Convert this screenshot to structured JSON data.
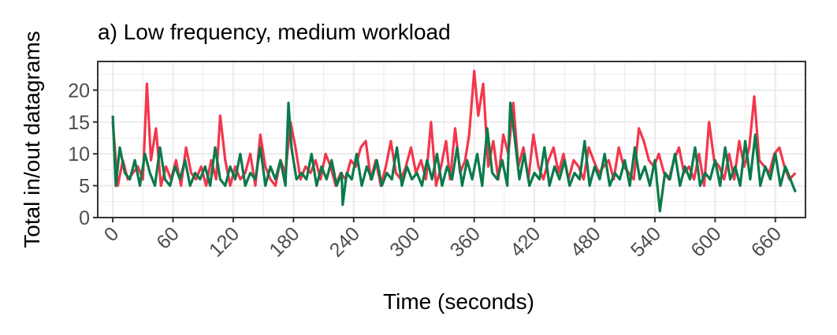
{
  "chart_data": {
    "type": "line",
    "title": "a) Low frequency, medium workload",
    "xlabel": "Time (seconds)",
    "ylabel": "Total in/out datagrams",
    "xlim": [
      -15,
      690
    ],
    "ylim": [
      0,
      24.5
    ],
    "x_ticks": [
      0,
      60,
      120,
      180,
      240,
      300,
      360,
      420,
      480,
      540,
      600,
      660
    ],
    "x_tick_labels": [
      "0",
      "60",
      "120",
      "180",
      "240",
      "300",
      "360",
      "420",
      "480",
      "540",
      "600",
      "660"
    ],
    "y_ticks": [
      0,
      5,
      10,
      15,
      20
    ],
    "y_tick_labels": [
      "0",
      "5",
      "10",
      "15",
      "20"
    ],
    "grid": true,
    "legend": "none",
    "colors": {
      "red_series": "#f4364c",
      "green_series": "#0b7a4b",
      "panel_border": "#333333",
      "grid": "#ebebeb"
    },
    "series": [
      {
        "color": "#f4364c",
        "x": [
          0,
          5,
          10,
          15,
          20,
          25,
          30,
          34,
          38,
          43,
          48,
          53,
          58,
          63,
          68,
          73,
          78,
          83,
          88,
          93,
          98,
          103,
          107,
          112,
          117,
          122,
          127,
          132,
          137,
          142,
          147,
          152,
          157,
          162,
          167,
          172,
          177,
          182,
          187,
          192,
          197,
          202,
          207,
          212,
          217,
          222,
          227,
          232,
          237,
          242,
          247,
          252,
          257,
          262,
          267,
          272,
          277,
          282,
          287,
          292,
          297,
          302,
          307,
          312,
          317,
          322,
          327,
          332,
          336,
          341,
          346,
          351,
          355,
          360,
          364,
          369,
          374,
          379,
          384,
          389,
          394,
          399,
          404,
          409,
          414,
          419,
          424,
          429,
          434,
          439,
          444,
          449,
          454,
          459,
          464,
          469,
          474,
          479,
          484,
          489,
          494,
          499,
          504,
          509,
          514,
          519,
          524,
          529,
          534,
          539,
          544,
          549,
          554,
          559,
          564,
          569,
          574,
          579,
          584,
          589,
          594,
          599,
          604,
          609,
          614,
          619,
          624,
          629,
          634,
          639,
          644,
          649,
          654,
          659,
          664,
          669,
          674,
          680
        ],
        "y": [
          15,
          5,
          9,
          6,
          7,
          8,
          6,
          21,
          9,
          14,
          5,
          8,
          6,
          9,
          5,
          11,
          7,
          6,
          8,
          5,
          9,
          6,
          16,
          9,
          5,
          8,
          6,
          7,
          10,
          5,
          13,
          8,
          6,
          5,
          9,
          7,
          15,
          11,
          6,
          8,
          7,
          9,
          6,
          10,
          8,
          5,
          7,
          6,
          9,
          8,
          11,
          12,
          6,
          9,
          5,
          8,
          12,
          7,
          6,
          8,
          11,
          7,
          9,
          6,
          15,
          5,
          8,
          12,
          6,
          14,
          7,
          9,
          13,
          23,
          16,
          21,
          8,
          12,
          6,
          13,
          10,
          18,
          8,
          11,
          6,
          13,
          8,
          6,
          9,
          11,
          7,
          10,
          6,
          9,
          8,
          6,
          11,
          9,
          7,
          8,
          9,
          6,
          11,
          8,
          7,
          6,
          14,
          12,
          9,
          8,
          10,
          7,
          6,
          9,
          11,
          7,
          8,
          6,
          10,
          5,
          15,
          9,
          8,
          6,
          10,
          6,
          12,
          8,
          11,
          19,
          9,
          8,
          7,
          10,
          11,
          8,
          6,
          7
        ]
      },
      {
        "color": "#0b7a4b",
        "x": [
          0,
          3,
          7,
          12,
          17,
          22,
          27,
          32,
          37,
          42,
          47,
          52,
          57,
          62,
          67,
          72,
          77,
          82,
          87,
          92,
          97,
          102,
          107,
          112,
          117,
          122,
          127,
          132,
          137,
          142,
          147,
          152,
          157,
          162,
          167,
          172,
          175,
          178,
          183,
          188,
          193,
          198,
          203,
          208,
          213,
          218,
          223,
          228,
          229,
          233,
          238,
          243,
          248,
          253,
          258,
          263,
          268,
          273,
          278,
          283,
          288,
          293,
          298,
          303,
          308,
          313,
          318,
          323,
          328,
          333,
          338,
          343,
          348,
          353,
          358,
          363,
          368,
          373,
          378,
          383,
          388,
          393,
          396,
          400,
          405,
          410,
          415,
          420,
          425,
          430,
          435,
          440,
          445,
          450,
          455,
          460,
          465,
          470,
          475,
          480,
          485,
          490,
          495,
          500,
          505,
          510,
          515,
          520,
          525,
          530,
          535,
          540,
          545,
          550,
          555,
          560,
          565,
          570,
          575,
          580,
          585,
          590,
          595,
          600,
          605,
          610,
          615,
          620,
          625,
          630,
          635,
          640,
          645,
          650,
          655,
          660,
          665,
          670,
          675,
          680
        ],
        "y": [
          16,
          5,
          11,
          7,
          6,
          9,
          5,
          10,
          7,
          5,
          11,
          6,
          5,
          8,
          6,
          9,
          5,
          7,
          6,
          8,
          5,
          11,
          6,
          5,
          8,
          6,
          10,
          5,
          7,
          6,
          11,
          5,
          8,
          6,
          9,
          5,
          18,
          11,
          6,
          7,
          6,
          10,
          5,
          8,
          6,
          9,
          5,
          7,
          2,
          7,
          6,
          10,
          5,
          8,
          6,
          9,
          5,
          7,
          6,
          11,
          5,
          8,
          6,
          7,
          5,
          9,
          6,
          10,
          5,
          8,
          6,
          11,
          5,
          9,
          6,
          10,
          5,
          14,
          7,
          6,
          9,
          5,
          18,
          13,
          6,
          10,
          5,
          7,
          6,
          11,
          5,
          8,
          6,
          9,
          5,
          7,
          6,
          12,
          5,
          8,
          6,
          10,
          5,
          7,
          6,
          9,
          5,
          11,
          6,
          8,
          5,
          9,
          1,
          7,
          6,
          10,
          5,
          8,
          6,
          11,
          5,
          7,
          6,
          9,
          5,
          11,
          6,
          8,
          5,
          12,
          6,
          13,
          5,
          8,
          6,
          10,
          5,
          8,
          6,
          4
        ]
      }
    ]
  }
}
